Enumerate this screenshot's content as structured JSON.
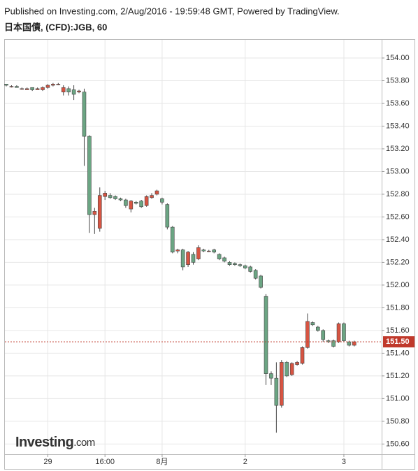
{
  "header": {
    "published": "Published on Investing.com, 2/Aug/2016 - 19:59:48 GMT, Powered by TradingView.",
    "symbol": "日本国債, (CFD):JGB, 60"
  },
  "logo": {
    "name": "Investing",
    "suffix": ".com"
  },
  "chart_data": {
    "type": "candlestick",
    "up_color": "#d75442",
    "down_color": "#6ba583",
    "grid": true,
    "categories": [
      null,
      null,
      null,
      null,
      null,
      null,
      null,
      null,
      "29",
      null,
      null,
      null,
      null,
      null,
      null,
      null,
      null,
      null,
      null,
      "16:00",
      null,
      null,
      null,
      null,
      null,
      null,
      null,
      null,
      null,
      null,
      "8月",
      null,
      null,
      null,
      null,
      null,
      null,
      null,
      null,
      null,
      null,
      null,
      null,
      null,
      null,
      null,
      "2",
      null,
      null,
      null,
      null,
      null,
      null,
      null,
      null,
      null,
      null,
      null,
      null,
      null,
      null,
      null,
      null,
      null,
      null,
      "3",
      null,
      null
    ],
    "ohlc": [
      [
        153.77,
        153.77,
        153.75,
        153.76
      ],
      [
        153.75,
        153.76,
        153.74,
        153.75
      ],
      [
        153.75,
        153.76,
        153.74,
        153.74
      ],
      [
        153.73,
        153.74,
        153.72,
        153.73
      ],
      [
        153.72,
        153.74,
        153.72,
        153.73
      ],
      [
        153.74,
        153.74,
        153.71,
        153.72
      ],
      [
        153.72,
        153.74,
        153.72,
        153.73
      ],
      [
        153.72,
        153.75,
        153.71,
        153.74
      ],
      [
        153.74,
        153.77,
        153.73,
        153.76
      ],
      [
        153.76,
        153.78,
        153.75,
        153.77
      ],
      [
        153.77,
        153.78,
        153.76,
        153.77
      ],
      [
        153.7,
        153.76,
        153.67,
        153.74
      ],
      [
        153.73,
        153.75,
        153.67,
        153.7
      ],
      [
        153.72,
        153.76,
        153.63,
        153.68
      ],
      [
        153.7,
        153.72,
        153.69,
        153.71
      ],
      [
        153.7,
        153.73,
        153.05,
        153.31
      ],
      [
        153.31,
        153.32,
        152.46,
        152.62
      ],
      [
        152.62,
        152.68,
        152.45,
        152.65
      ],
      [
        152.5,
        152.86,
        152.47,
        152.79
      ],
      [
        152.78,
        152.83,
        152.75,
        152.81
      ],
      [
        152.79,
        152.81,
        152.76,
        152.77
      ],
      [
        152.78,
        152.79,
        152.75,
        152.76
      ],
      [
        152.76,
        152.77,
        152.74,
        152.75
      ],
      [
        152.75,
        152.76,
        152.68,
        152.7
      ],
      [
        152.67,
        152.75,
        152.64,
        152.74
      ],
      [
        152.73,
        152.74,
        152.71,
        152.72
      ],
      [
        152.74,
        152.75,
        152.68,
        152.69
      ],
      [
        152.7,
        152.79,
        152.69,
        152.78
      ],
      [
        152.77,
        152.81,
        152.76,
        152.79
      ],
      [
        152.8,
        152.84,
        152.79,
        152.83
      ],
      [
        152.76,
        152.77,
        152.71,
        152.73
      ],
      [
        152.71,
        152.72,
        152.49,
        152.51
      ],
      [
        152.51,
        152.52,
        152.28,
        152.29
      ],
      [
        152.3,
        152.32,
        152.28,
        152.31
      ],
      [
        152.31,
        152.32,
        152.13,
        152.16
      ],
      [
        152.18,
        152.3,
        152.16,
        152.29
      ],
      [
        152.27,
        152.29,
        152.18,
        152.2
      ],
      [
        152.23,
        152.35,
        152.22,
        152.33
      ],
      [
        152.31,
        152.32,
        152.29,
        152.3
      ],
      [
        152.3,
        152.31,
        152.29,
        152.3
      ],
      [
        152.31,
        152.32,
        152.28,
        152.29
      ],
      [
        152.27,
        152.28,
        152.22,
        152.23
      ],
      [
        152.24,
        152.25,
        152.2,
        152.21
      ],
      [
        152.2,
        152.21,
        152.17,
        152.18
      ],
      [
        152.19,
        152.2,
        152.17,
        152.18
      ],
      [
        152.18,
        152.19,
        152.16,
        152.17
      ],
      [
        152.17,
        152.18,
        152.14,
        152.15
      ],
      [
        152.16,
        152.17,
        152.11,
        152.12
      ],
      [
        152.13,
        152.14,
        152.05,
        152.06
      ],
      [
        152.08,
        152.09,
        151.97,
        151.98
      ],
      [
        151.9,
        151.92,
        151.12,
        151.22
      ],
      [
        151.22,
        151.24,
        151.12,
        151.18
      ],
      [
        151.18,
        151.32,
        150.7,
        150.94
      ],
      [
        150.94,
        151.34,
        150.92,
        151.32
      ],
      [
        151.32,
        151.33,
        151.19,
        151.2
      ],
      [
        151.21,
        151.32,
        151.2,
        151.31
      ],
      [
        151.3,
        151.33,
        151.29,
        151.32
      ],
      [
        151.31,
        151.46,
        151.3,
        151.45
      ],
      [
        151.45,
        151.75,
        151.44,
        151.68
      ],
      [
        151.67,
        151.68,
        151.64,
        151.65
      ],
      [
        151.63,
        151.64,
        151.59,
        151.6
      ],
      [
        151.6,
        151.61,
        151.5,
        151.52
      ],
      [
        151.51,
        151.52,
        151.49,
        151.5
      ],
      [
        151.51,
        151.52,
        151.45,
        151.46
      ],
      [
        151.5,
        151.67,
        151.49,
        151.66
      ],
      [
        151.66,
        151.67,
        151.5,
        151.51
      ],
      [
        151.5,
        151.51,
        151.46,
        151.47
      ],
      [
        151.47,
        151.51,
        151.46,
        151.5
      ]
    ],
    "ylim": [
      150.51,
      154.16
    ],
    "yticks": [
      {
        "value": 150.6,
        "label": "150.60"
      },
      {
        "value": 150.8,
        "label": "150.80"
      },
      {
        "value": 151.0,
        "label": "151.00"
      },
      {
        "value": 151.2,
        "label": "151.20"
      },
      {
        "value": 151.4,
        "label": "151.40"
      },
      {
        "value": 151.6,
        "label": "151.60"
      },
      {
        "value": 151.8,
        "label": "151.80"
      },
      {
        "value": 152.0,
        "label": "152.00"
      },
      {
        "value": 152.2,
        "label": "152.20"
      },
      {
        "value": 152.4,
        "label": "152.40"
      },
      {
        "value": 152.6,
        "label": "152.60"
      },
      {
        "value": 152.8,
        "label": "152.80"
      },
      {
        "value": 153.0,
        "label": "153.00"
      },
      {
        "value": 153.2,
        "label": "153.20"
      },
      {
        "value": 153.4,
        "label": "153.40"
      },
      {
        "value": 153.6,
        "label": "153.60"
      },
      {
        "value": 153.8,
        "label": "153.80"
      },
      {
        "value": 154.0,
        "label": "154.00"
      }
    ],
    "last_price": {
      "value": 151.5,
      "label": "151.50"
    },
    "last_price_color": "#c0392b"
  }
}
